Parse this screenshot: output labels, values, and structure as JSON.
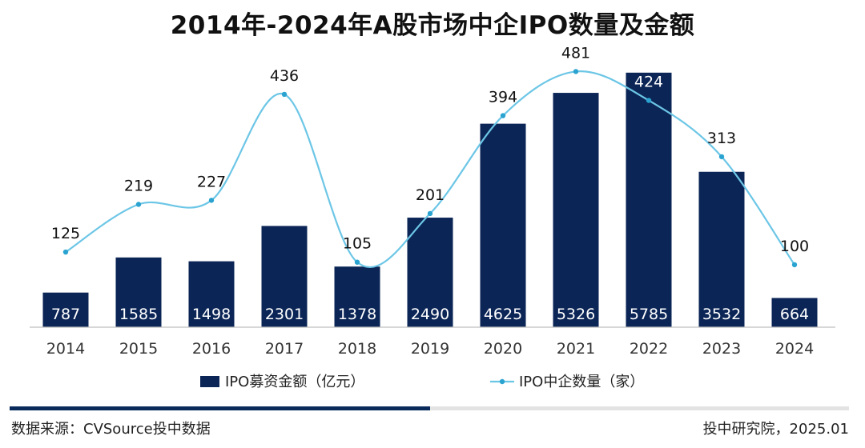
{
  "chart_data": {
    "type": "bar",
    "title": "2014年-2024年A股市场中企IPO数量及金额",
    "categories": [
      "2014",
      "2015",
      "2016",
      "2017",
      "2018",
      "2019",
      "2020",
      "2021",
      "2022",
      "2023",
      "2024"
    ],
    "series": [
      {
        "name": "IPO募资金额（亿元）",
        "type": "bar",
        "color": "#0b2556",
        "values": [
          787,
          1585,
          1498,
          2301,
          1378,
          2490,
          4625,
          5326,
          5785,
          3532,
          664
        ]
      },
      {
        "name": "IPO中企数量（家）",
        "type": "line",
        "color": "#6cc6e6",
        "values": [
          125,
          219,
          227,
          436,
          105,
          201,
          394,
          481,
          424,
          313,
          100
        ]
      }
    ],
    "ylim_bar": [
      0,
      6000
    ],
    "ylim_line": [
      -80,
      570
    ]
  },
  "footer": {
    "source": "数据来源：CVSource投中数据",
    "credit": "投中研究院，2025.01"
  }
}
